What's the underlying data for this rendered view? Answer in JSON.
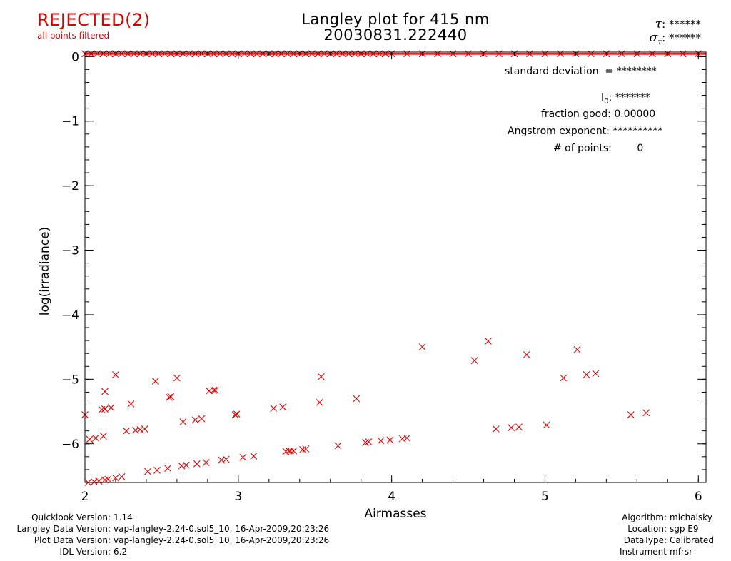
{
  "status": {
    "label": "REJECTED(2)",
    "sublabel": "all points filtered",
    "color": "#e00000"
  },
  "header": {
    "title_line1": "Langley plot for 415 nm",
    "title_line2": "20030831.222440",
    "tau_value": "******",
    "sigma_tau_value": "******"
  },
  "stats": {
    "std_dev_label": "standard deviation",
    "std_dev_value": "= ********",
    "i0_label": "I",
    "i0_sub": "0",
    "i0_value": "*******",
    "fraction_good_label": "fraction good:",
    "fraction_good_value": "0.00000",
    "angstrom_label": "Angstrom exponent:",
    "angstrom_value": "**********",
    "npoints_label": "# of points:",
    "npoints_value": "0"
  },
  "footer_left": [
    {
      "label": "Quicklook Version:",
      "value": "1.14"
    },
    {
      "label": "Langley Data Version:",
      "value": "vap-langley-2.24-0.sol5_10, 16-Apr-2009,20:23:26"
    },
    {
      "label": "Plot Data Version:",
      "value": "vap-langley-2.24-0.sol5_10, 16-Apr-2009,20:23:26"
    },
    {
      "label": "IDL Version:",
      "value": "6.2"
    }
  ],
  "footer_right": [
    {
      "label": "Algorithm:",
      "value": "michalsky"
    },
    {
      "label": "Location:",
      "value": "sgp E9"
    },
    {
      "label": "DataType:",
      "value": "Calibrated"
    },
    {
      "label": "Instrument",
      "value": "mfrsr"
    }
  ],
  "chart_data": {
    "type": "scatter",
    "title": "Langley plot for 415 nm",
    "xlabel": "Airmasses",
    "ylabel": "log(irradiance)",
    "xlim": [
      2,
      6.05
    ],
    "ylim": [
      -6.6,
      0.07
    ],
    "xticks": [
      2,
      3,
      4,
      5,
      6
    ],
    "yticks": [
      0,
      -1,
      -2,
      -3,
      -4,
      -5,
      -6
    ],
    "grid": false,
    "marker": "x",
    "marker_color": "#e00000",
    "top_band_points": [
      2.0,
      2.04,
      2.08,
      2.12,
      2.16,
      2.2,
      2.24,
      2.28,
      2.32,
      2.36,
      2.4,
      2.44,
      2.48,
      2.52,
      2.56,
      2.6,
      2.64,
      2.68,
      2.72,
      2.76,
      2.8,
      2.84,
      2.88,
      2.92,
      2.96,
      3.0,
      3.04,
      3.08,
      3.12,
      3.16,
      3.2,
      3.24,
      3.28,
      3.32,
      3.36,
      3.4,
      3.44,
      3.48,
      3.52,
      3.56,
      3.6,
      3.64,
      3.68,
      3.72,
      3.76,
      3.8,
      3.84,
      3.88,
      3.92,
      3.96,
      4.0,
      4.1,
      4.2,
      4.3,
      4.4,
      4.5,
      4.6,
      4.7,
      4.8,
      4.9,
      5.0,
      5.1,
      5.2,
      5.3,
      5.4,
      5.5,
      5.6,
      5.7,
      5.8,
      5.9,
      6.0
    ],
    "points": [
      {
        "x": 2.0,
        "y": -5.55
      },
      {
        "x": 2.03,
        "y": -5.93
      },
      {
        "x": 2.07,
        "y": -5.91
      },
      {
        "x": 2.12,
        "y": -5.88
      },
      {
        "x": 2.11,
        "y": -5.47
      },
      {
        "x": 2.13,
        "y": -5.46
      },
      {
        "x": 2.13,
        "y": -5.19
      },
      {
        "x": 2.17,
        "y": -5.44
      },
      {
        "x": 2.2,
        "y": -4.93
      },
      {
        "x": 2.27,
        "y": -5.8
      },
      {
        "x": 2.3,
        "y": -5.38
      },
      {
        "x": 2.33,
        "y": -5.79
      },
      {
        "x": 2.36,
        "y": -5.78
      },
      {
        "x": 2.39,
        "y": -5.77
      },
      {
        "x": 2.46,
        "y": -5.03
      },
      {
        "x": 2.55,
        "y": -5.28
      },
      {
        "x": 2.56,
        "y": -5.27
      },
      {
        "x": 2.6,
        "y": -4.98
      },
      {
        "x": 2.64,
        "y": -5.66
      },
      {
        "x": 2.72,
        "y": -5.63
      },
      {
        "x": 2.76,
        "y": -5.61
      },
      {
        "x": 2.81,
        "y": -5.18
      },
      {
        "x": 2.84,
        "y": -5.17
      },
      {
        "x": 2.85,
        "y": -5.17
      },
      {
        "x": 2.98,
        "y": -5.55
      },
      {
        "x": 2.99,
        "y": -5.54
      },
      {
        "x": 3.23,
        "y": -5.45
      },
      {
        "x": 3.29,
        "y": -5.43
      },
      {
        "x": 3.54,
        "y": -4.96
      },
      {
        "x": 3.53,
        "y": -5.36
      },
      {
        "x": 3.77,
        "y": -5.3
      },
      {
        "x": 4.2,
        "y": -4.5
      },
      {
        "x": 4.54,
        "y": -4.71
      },
      {
        "x": 4.63,
        "y": -4.41
      },
      {
        "x": 4.68,
        "y": -5.77
      },
      {
        "x": 4.78,
        "y": -5.75
      },
      {
        "x": 4.83,
        "y": -5.74
      },
      {
        "x": 4.88,
        "y": -4.62
      },
      {
        "x": 5.01,
        "y": -5.71
      },
      {
        "x": 5.12,
        "y": -4.98
      },
      {
        "x": 5.21,
        "y": -4.54
      },
      {
        "x": 5.27,
        "y": -4.93
      },
      {
        "x": 5.33,
        "y": -4.91
      },
      {
        "x": 5.56,
        "y": -5.55
      },
      {
        "x": 5.66,
        "y": -5.52
      },
      {
        "x": 2.02,
        "y": -6.6
      },
      {
        "x": 2.06,
        "y": -6.59
      },
      {
        "x": 2.09,
        "y": -6.58
      },
      {
        "x": 2.13,
        "y": -6.56
      },
      {
        "x": 2.15,
        "y": -6.55
      },
      {
        "x": 2.2,
        "y": -6.53
      },
      {
        "x": 2.24,
        "y": -6.51
      },
      {
        "x": 2.41,
        "y": -6.43
      },
      {
        "x": 2.47,
        "y": -6.41
      },
      {
        "x": 2.54,
        "y": -6.38
      },
      {
        "x": 2.63,
        "y": -6.34
      },
      {
        "x": 2.66,
        "y": -6.33
      },
      {
        "x": 2.73,
        "y": -6.31
      },
      {
        "x": 2.79,
        "y": -6.29
      },
      {
        "x": 2.89,
        "y": -6.25
      },
      {
        "x": 2.92,
        "y": -6.24
      },
      {
        "x": 3.03,
        "y": -6.21
      },
      {
        "x": 3.1,
        "y": -6.19
      },
      {
        "x": 3.31,
        "y": -6.12
      },
      {
        "x": 3.33,
        "y": -6.11
      },
      {
        "x": 3.34,
        "y": -6.11
      },
      {
        "x": 3.36,
        "y": -6.11
      },
      {
        "x": 3.42,
        "y": -6.09
      },
      {
        "x": 3.44,
        "y": -6.08
      },
      {
        "x": 3.65,
        "y": -6.03
      },
      {
        "x": 3.83,
        "y": -5.98
      },
      {
        "x": 3.85,
        "y": -5.97
      },
      {
        "x": 3.93,
        "y": -5.95
      },
      {
        "x": 3.99,
        "y": -5.94
      },
      {
        "x": 4.07,
        "y": -5.92
      },
      {
        "x": 4.1,
        "y": -5.91
      }
    ]
  }
}
